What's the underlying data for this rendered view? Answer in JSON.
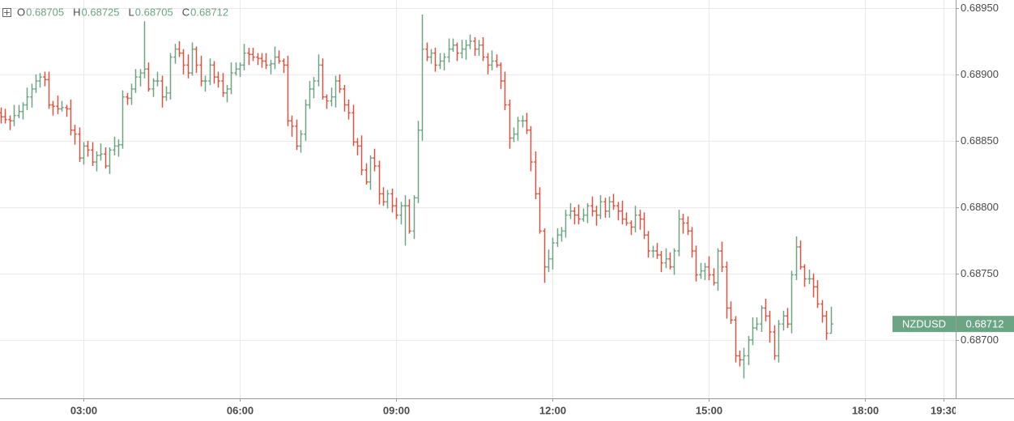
{
  "chart_data": {
    "type": "ohlc",
    "symbol": "NZDUSD",
    "ohlc_labels": [
      "O",
      "H",
      "L",
      "C"
    ],
    "up_color": "#6ba583",
    "down_color": "#d75442",
    "grid": true,
    "xlim": [
      84,
      1184
    ],
    "xticks": [
      {
        "value": 180,
        "label": "03:00"
      },
      {
        "value": 360,
        "label": "06:00"
      },
      {
        "value": 540,
        "label": "09:00"
      },
      {
        "value": 720,
        "label": "12:00"
      },
      {
        "value": 900,
        "label": "15:00"
      },
      {
        "value": 1080,
        "label": "18:00"
      },
      {
        "value": 1170,
        "label": "19:30"
      }
    ],
    "ylim": [
      0.68656,
      0.68956
    ],
    "yticks": [
      {
        "value": 0.687,
        "label": "0.68700"
      },
      {
        "value": 0.6875,
        "label": "0.68750"
      },
      {
        "value": 0.688,
        "label": "0.68800"
      },
      {
        "value": 0.6885,
        "label": "0.68850"
      },
      {
        "value": 0.689,
        "label": "0.68900"
      },
      {
        "value": 0.6895,
        "label": "0.68950"
      }
    ],
    "x": [
      85,
      90,
      95,
      100,
      105,
      110,
      115,
      120,
      125,
      130,
      135,
      140,
      145,
      150,
      155,
      160,
      165,
      170,
      175,
      180,
      185,
      190,
      195,
      200,
      205,
      210,
      215,
      220,
      225,
      230,
      235,
      240,
      245,
      250,
      255,
      260,
      265,
      270,
      275,
      280,
      285,
      290,
      295,
      300,
      305,
      310,
      315,
      320,
      325,
      330,
      335,
      340,
      345,
      350,
      355,
      360,
      365,
      370,
      375,
      380,
      385,
      390,
      395,
      400,
      405,
      410,
      415,
      420,
      425,
      430,
      435,
      440,
      445,
      450,
      455,
      460,
      465,
      470,
      475,
      480,
      485,
      490,
      495,
      500,
      505,
      510,
      515,
      520,
      525,
      530,
      535,
      540,
      545,
      550,
      555,
      560,
      565,
      570,
      575,
      580,
      585,
      590,
      595,
      600,
      605,
      610,
      615,
      620,
      625,
      630,
      635,
      640,
      645,
      650,
      655,
      660,
      665,
      670,
      675,
      680,
      685,
      690,
      695,
      700,
      705,
      710,
      715,
      720,
      725,
      730,
      735,
      740,
      745,
      750,
      755,
      760,
      765,
      770,
      775,
      780,
      785,
      790,
      795,
      800,
      805,
      810,
      815,
      820,
      825,
      830,
      835,
      840,
      845,
      850,
      855,
      860,
      865,
      870,
      875,
      880,
      885,
      890,
      895,
      900,
      905,
      910,
      915,
      920,
      925,
      930,
      935,
      940,
      945,
      950,
      955,
      960,
      965,
      970,
      975,
      980,
      985,
      990,
      995,
      1000,
      1005,
      1010,
      1015,
      1020,
      1025,
      1030,
      1035,
      1040
    ],
    "bars": [
      [
        0.68871,
        0.68875,
        0.68863,
        0.68868
      ],
      [
        0.68868,
        0.68874,
        0.68863,
        0.68866
      ],
      [
        0.68866,
        0.68869,
        0.68858,
        0.68865
      ],
      [
        0.68865,
        0.68877,
        0.68861,
        0.68869
      ],
      [
        0.68869,
        0.68877,
        0.68867,
        0.68872
      ],
      [
        0.68872,
        0.68879,
        0.68866,
        0.68877
      ],
      [
        0.68877,
        0.6889,
        0.68873,
        0.68883
      ],
      [
        0.68883,
        0.68893,
        0.68875,
        0.68889
      ],
      [
        0.68889,
        0.689,
        0.68886,
        0.68895
      ],
      [
        0.68895,
        0.68901,
        0.6889,
        0.68898
      ],
      [
        0.68898,
        0.68902,
        0.68891,
        0.68896
      ],
      [
        0.68896,
        0.68902,
        0.68874,
        0.68877
      ],
      [
        0.68877,
        0.6888,
        0.68869,
        0.68876
      ],
      [
        0.68876,
        0.68884,
        0.6887,
        0.68874
      ],
      [
        0.68874,
        0.6888,
        0.68872,
        0.68875
      ],
      [
        0.68875,
        0.68877,
        0.68868,
        0.68874
      ],
      [
        0.68874,
        0.68881,
        0.68854,
        0.68858
      ],
      [
        0.68858,
        0.68862,
        0.68847,
        0.68855
      ],
      [
        0.68855,
        0.6886,
        0.68834,
        0.68837
      ],
      [
        0.68837,
        0.68849,
        0.68832,
        0.68846
      ],
      [
        0.68846,
        0.6885,
        0.68838,
        0.68843
      ],
      [
        0.68843,
        0.68849,
        0.68831,
        0.68834
      ],
      [
        0.68834,
        0.68842,
        0.68827,
        0.68839
      ],
      [
        0.68839,
        0.68848,
        0.68835,
        0.6884
      ],
      [
        0.6884,
        0.68845,
        0.68829,
        0.68831
      ],
      [
        0.68831,
        0.68845,
        0.68825,
        0.68843
      ],
      [
        0.68843,
        0.68853,
        0.68839,
        0.68846
      ],
      [
        0.68846,
        0.68851,
        0.68838,
        0.68847
      ],
      [
        0.68847,
        0.68888,
        0.68844,
        0.68883
      ],
      [
        0.68883,
        0.68886,
        0.68877,
        0.68882
      ],
      [
        0.68882,
        0.68893,
        0.68877,
        0.68889
      ],
      [
        0.68889,
        0.68904,
        0.68886,
        0.68898
      ],
      [
        0.68898,
        0.68904,
        0.68891,
        0.68901
      ],
      [
        0.68901,
        0.6894,
        0.68897,
        0.68904
      ],
      [
        0.68904,
        0.68909,
        0.68887,
        0.68889
      ],
      [
        0.68889,
        0.68897,
        0.68883,
        0.68895
      ],
      [
        0.68895,
        0.68902,
        0.68891,
        0.68895
      ],
      [
        0.68895,
        0.68899,
        0.68875,
        0.68883
      ],
      [
        0.68883,
        0.68891,
        0.6888,
        0.68886
      ],
      [
        0.68886,
        0.68916,
        0.68881,
        0.68913
      ],
      [
        0.68913,
        0.68923,
        0.68908,
        0.68919
      ],
      [
        0.68919,
        0.68925,
        0.68913,
        0.68916
      ],
      [
        0.68916,
        0.68919,
        0.689,
        0.68907
      ],
      [
        0.68907,
        0.68915,
        0.68897,
        0.68901
      ],
      [
        0.68901,
        0.68924,
        0.68899,
        0.68919
      ],
      [
        0.68919,
        0.68921,
        0.68901,
        0.68907
      ],
      [
        0.68907,
        0.68914,
        0.68891,
        0.68895
      ],
      [
        0.68895,
        0.68899,
        0.68887,
        0.68895
      ],
      [
        0.68895,
        0.68912,
        0.68892,
        0.68907
      ],
      [
        0.68907,
        0.6891,
        0.68893,
        0.68898
      ],
      [
        0.68898,
        0.68902,
        0.6889,
        0.68895
      ],
      [
        0.68895,
        0.68901,
        0.68883,
        0.68886
      ],
      [
        0.68886,
        0.68892,
        0.68879,
        0.68889
      ],
      [
        0.68889,
        0.68909,
        0.68885,
        0.68901
      ],
      [
        0.68901,
        0.68909,
        0.68899,
        0.68904
      ],
      [
        0.68904,
        0.68909,
        0.68898,
        0.68907
      ],
      [
        0.68907,
        0.68923,
        0.68903,
        0.68916
      ],
      [
        0.68916,
        0.6892,
        0.68907,
        0.68915
      ],
      [
        0.68915,
        0.6892,
        0.6891,
        0.68913
      ],
      [
        0.68913,
        0.68916,
        0.68907,
        0.68912
      ],
      [
        0.68912,
        0.68916,
        0.68905,
        0.6891
      ],
      [
        0.6891,
        0.68916,
        0.68904,
        0.68907
      ],
      [
        0.68907,
        0.68911,
        0.689,
        0.68908
      ],
      [
        0.68908,
        0.68921,
        0.68904,
        0.68913
      ],
      [
        0.68913,
        0.68918,
        0.68908,
        0.6891
      ],
      [
        0.6891,
        0.68912,
        0.68901,
        0.68907
      ],
      [
        0.68907,
        0.68914,
        0.68861,
        0.68865
      ],
      [
        0.68865,
        0.68869,
        0.68853,
        0.68861
      ],
      [
        0.68861,
        0.68866,
        0.68843,
        0.68846
      ],
      [
        0.68846,
        0.68858,
        0.68841,
        0.68855
      ],
      [
        0.68855,
        0.68881,
        0.6885,
        0.68877
      ],
      [
        0.68877,
        0.68895,
        0.68874,
        0.68889
      ],
      [
        0.68889,
        0.68898,
        0.68882,
        0.68895
      ],
      [
        0.68895,
        0.68915,
        0.68891,
        0.68907
      ],
      [
        0.68907,
        0.68912,
        0.68881,
        0.68883
      ],
      [
        0.68883,
        0.68885,
        0.68874,
        0.6888
      ],
      [
        0.6888,
        0.6889,
        0.68876,
        0.68883
      ],
      [
        0.68883,
        0.68899,
        0.68875,
        0.68895
      ],
      [
        0.68895,
        0.689,
        0.68886,
        0.68889
      ],
      [
        0.68889,
        0.68892,
        0.68872,
        0.68877
      ],
      [
        0.68877,
        0.68881,
        0.68866,
        0.68871
      ],
      [
        0.68871,
        0.68877,
        0.68846,
        0.68849
      ],
      [
        0.68849,
        0.68852,
        0.68839,
        0.68846
      ],
      [
        0.68846,
        0.68854,
        0.68824,
        0.68828
      ],
      [
        0.68828,
        0.68833,
        0.68817,
        0.68819
      ],
      [
        0.68819,
        0.68839,
        0.68813,
        0.68837
      ],
      [
        0.68837,
        0.68844,
        0.68827,
        0.68831
      ],
      [
        0.68831,
        0.68835,
        0.68802,
        0.6881
      ],
      [
        0.6881,
        0.68815,
        0.68801,
        0.68804
      ],
      [
        0.68804,
        0.68813,
        0.68799,
        0.6881
      ],
      [
        0.6881,
        0.68814,
        0.68796,
        0.68801
      ],
      [
        0.68801,
        0.68807,
        0.68791,
        0.68794
      ],
      [
        0.68794,
        0.68804,
        0.68787,
        0.68801
      ],
      [
        0.68801,
        0.68809,
        0.68771,
        0.68801
      ],
      [
        0.68801,
        0.68806,
        0.6878,
        0.68782
      ],
      [
        0.68782,
        0.68809,
        0.68776,
        0.68807
      ],
      [
        0.68807,
        0.68865,
        0.68803,
        0.68858
      ],
      [
        0.68858,
        0.68945,
        0.6885,
        0.68919
      ],
      [
        0.68919,
        0.68924,
        0.6891,
        0.68913
      ],
      [
        0.68913,
        0.68919,
        0.68908,
        0.68916
      ],
      [
        0.68916,
        0.6892,
        0.68902,
        0.68907
      ],
      [
        0.68907,
        0.68916,
        0.68904,
        0.6891
      ],
      [
        0.6891,
        0.68916,
        0.68903,
        0.68913
      ],
      [
        0.68913,
        0.68927,
        0.68909,
        0.68919
      ],
      [
        0.68919,
        0.68927,
        0.68917,
        0.68922
      ],
      [
        0.68922,
        0.68924,
        0.6891,
        0.68916
      ],
      [
        0.68916,
        0.68926,
        0.68912,
        0.68919
      ],
      [
        0.68919,
        0.68926,
        0.68911,
        0.68922
      ],
      [
        0.68922,
        0.6893,
        0.68919,
        0.68925
      ],
      [
        0.68925,
        0.68928,
        0.68914,
        0.68919
      ],
      [
        0.68919,
        0.68926,
        0.68914,
        0.68922
      ],
      [
        0.68922,
        0.68928,
        0.6891,
        0.68913
      ],
      [
        0.68913,
        0.68916,
        0.689,
        0.68907
      ],
      [
        0.68907,
        0.68918,
        0.68903,
        0.6891
      ],
      [
        0.6891,
        0.68915,
        0.68905,
        0.68907
      ],
      [
        0.68907,
        0.68909,
        0.68889,
        0.68895
      ],
      [
        0.68895,
        0.68902,
        0.68873,
        0.68877
      ],
      [
        0.68877,
        0.68881,
        0.68844,
        0.68852
      ],
      [
        0.68852,
        0.6886,
        0.68849,
        0.68855
      ],
      [
        0.68855,
        0.68868,
        0.6885,
        0.68865
      ],
      [
        0.68865,
        0.68869,
        0.6886,
        0.68865
      ],
      [
        0.68865,
        0.68871,
        0.68855,
        0.68858
      ],
      [
        0.68858,
        0.68861,
        0.68827,
        0.68834
      ],
      [
        0.68834,
        0.68842,
        0.68806,
        0.6881
      ],
      [
        0.6881,
        0.68815,
        0.6878,
        0.68782
      ],
      [
        0.68782,
        0.68784,
        0.68743,
        0.68755
      ],
      [
        0.68755,
        0.68768,
        0.68751,
        0.68761
      ],
      [
        0.68761,
        0.68777,
        0.68753,
        0.68773
      ],
      [
        0.68773,
        0.68784,
        0.6877,
        0.68779
      ],
      [
        0.68779,
        0.68785,
        0.68774,
        0.68782
      ],
      [
        0.68782,
        0.68798,
        0.68777,
        0.68794
      ],
      [
        0.68794,
        0.68803,
        0.68791,
        0.68797
      ],
      [
        0.68797,
        0.688,
        0.68787,
        0.68794
      ],
      [
        0.68794,
        0.68802,
        0.68787,
        0.68791
      ],
      [
        0.68791,
        0.68799,
        0.68789,
        0.68794
      ],
      [
        0.68794,
        0.68803,
        0.68788,
        0.68801
      ],
      [
        0.68801,
        0.68808,
        0.68793,
        0.68797
      ],
      [
        0.68797,
        0.68801,
        0.68786,
        0.68794
      ],
      [
        0.68794,
        0.68809,
        0.68791,
        0.68804
      ],
      [
        0.68804,
        0.68807,
        0.68792,
        0.68797
      ],
      [
        0.68797,
        0.68808,
        0.68792,
        0.68804
      ],
      [
        0.68804,
        0.6881,
        0.68798,
        0.68801
      ],
      [
        0.68801,
        0.68804,
        0.6879,
        0.68797
      ],
      [
        0.68797,
        0.68805,
        0.68787,
        0.68791
      ],
      [
        0.68791,
        0.68796,
        0.68786,
        0.68788
      ],
      [
        0.68788,
        0.6879,
        0.68779,
        0.68785
      ],
      [
        0.68785,
        0.68801,
        0.68781,
        0.68794
      ],
      [
        0.68794,
        0.68798,
        0.68783,
        0.68791
      ],
      [
        0.68791,
        0.68796,
        0.68776,
        0.68779
      ],
      [
        0.68779,
        0.68782,
        0.68762,
        0.68767
      ],
      [
        0.68767,
        0.68771,
        0.68762,
        0.68767
      ],
      [
        0.68767,
        0.68773,
        0.68761,
        0.68764
      ],
      [
        0.68764,
        0.68767,
        0.68751,
        0.68758
      ],
      [
        0.68758,
        0.68769,
        0.68754,
        0.68761
      ],
      [
        0.68761,
        0.68766,
        0.68753,
        0.68755
      ],
      [
        0.68755,
        0.68769,
        0.68749,
        0.68767
      ],
      [
        0.68767,
        0.68798,
        0.68763,
        0.68791
      ],
      [
        0.68791,
        0.68795,
        0.6878,
        0.68788
      ],
      [
        0.68788,
        0.68793,
        0.68779,
        0.68782
      ],
      [
        0.68782,
        0.68785,
        0.68762,
        0.68767
      ],
      [
        0.68767,
        0.68771,
        0.68744,
        0.68749
      ],
      [
        0.68749,
        0.68758,
        0.68746,
        0.68752
      ],
      [
        0.68752,
        0.68758,
        0.68745,
        0.68755
      ],
      [
        0.68755,
        0.68763,
        0.68745,
        0.68749
      ],
      [
        0.68749,
        0.68754,
        0.68741,
        0.68743
      ],
      [
        0.68743,
        0.68769,
        0.68737,
        0.68767
      ],
      [
        0.68767,
        0.68774,
        0.68751,
        0.68755
      ],
      [
        0.68755,
        0.68759,
        0.68716,
        0.68724
      ],
      [
        0.68724,
        0.68729,
        0.68712,
        0.68715
      ],
      [
        0.68715,
        0.68718,
        0.68683,
        0.68688
      ],
      [
        0.68688,
        0.68692,
        0.6868,
        0.68685
      ],
      [
        0.68685,
        0.68694,
        0.68671,
        0.68688
      ],
      [
        0.68688,
        0.68703,
        0.68681,
        0.687
      ],
      [
        0.687,
        0.68717,
        0.68696,
        0.68709
      ],
      [
        0.68709,
        0.68717,
        0.68707,
        0.68712
      ],
      [
        0.68712,
        0.68726,
        0.68706,
        0.68724
      ],
      [
        0.68724,
        0.68731,
        0.68714,
        0.68718
      ],
      [
        0.68718,
        0.68722,
        0.68698,
        0.68706
      ],
      [
        0.68706,
        0.68711,
        0.68685,
        0.68688
      ],
      [
        0.68688,
        0.68715,
        0.68683,
        0.68712
      ],
      [
        0.68712,
        0.68722,
        0.68707,
        0.68718
      ],
      [
        0.68718,
        0.68724,
        0.68709,
        0.68712
      ],
      [
        0.68712,
        0.68752,
        0.68705,
        0.68749
      ],
      [
        0.68749,
        0.68778,
        0.68745,
        0.6877
      ],
      [
        0.6877,
        0.68775,
        0.68753,
        0.68755
      ],
      [
        0.68755,
        0.68757,
        0.6874,
        0.68746
      ],
      [
        0.68746,
        0.68753,
        0.68742,
        0.68746
      ],
      [
        0.68746,
        0.6875,
        0.68732,
        0.6874
      ],
      [
        0.6874,
        0.68745,
        0.68724,
        0.68727
      ],
      [
        0.68727,
        0.6873,
        0.68713,
        0.68718
      ],
      [
        0.68718,
        0.68722,
        0.687,
        0.68705
      ],
      [
        0.68705,
        0.68725,
        0.68705,
        0.68712
      ]
    ]
  }
}
